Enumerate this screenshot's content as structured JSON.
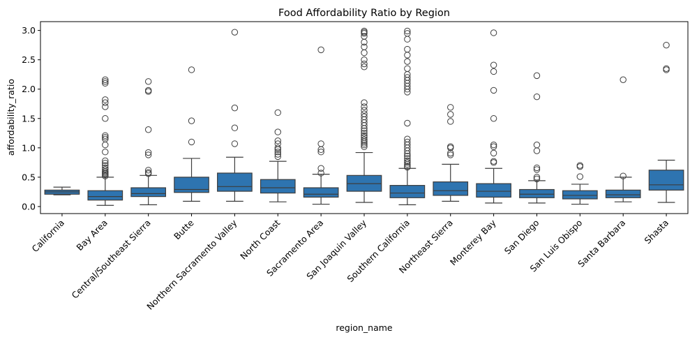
{
  "chart_data": {
    "type": "box",
    "title": "Food Affordability Ratio by Region",
    "xlabel": "region_name",
    "ylabel": "affordability_ratio",
    "ylim": [
      -0.12,
      3.15
    ],
    "yticks": [
      0.0,
      0.5,
      1.0,
      1.5,
      2.0,
      2.5,
      3.0
    ],
    "ytick_labels": [
      "0.0",
      "0.5",
      "1.0",
      "1.5",
      "2.0",
      "2.5",
      "3.0"
    ],
    "grid": false,
    "box_color": "#2e74b0",
    "categories": [
      "California",
      "Bay Area",
      "Central/Southeast Sierra",
      "Butte",
      "Northern Sacramento Valley",
      "North Coast",
      "Sacramento Area",
      "San Joaquin Valley",
      "Southern California",
      "Northeast Sierra",
      "Monterey Bay",
      "San Diego",
      "San Luis Obispo",
      "Santa Barbara",
      "Shasta"
    ],
    "boxes": [
      {
        "whislo": 0.2,
        "q1": 0.21,
        "med": 0.25,
        "q3": 0.28,
        "whishi": 0.33,
        "fliers": []
      },
      {
        "whislo": 0.02,
        "q1": 0.11,
        "med": 0.17,
        "q3": 0.27,
        "whishi": 0.5,
        "fliers": [
          0.52,
          0.54,
          0.56,
          0.58,
          0.6,
          0.63,
          0.66,
          0.7,
          0.74,
          0.78,
          0.93,
          1.05,
          1.15,
          1.18,
          1.21,
          1.5,
          1.7,
          1.77,
          1.82,
          2.1,
          2.13,
          2.16
        ]
      },
      {
        "whislo": 0.03,
        "q1": 0.17,
        "med": 0.22,
        "q3": 0.32,
        "whishi": 0.53,
        "fliers": [
          0.56,
          0.58,
          0.62,
          0.88,
          0.92,
          1.31,
          1.96,
          1.98,
          2.13
        ]
      },
      {
        "whislo": 0.09,
        "q1": 0.24,
        "med": 0.29,
        "q3": 0.5,
        "whishi": 0.82,
        "fliers": [
          1.1,
          1.46,
          2.33
        ]
      },
      {
        "whislo": 0.09,
        "q1": 0.26,
        "med": 0.34,
        "q3": 0.57,
        "whishi": 0.84,
        "fliers": [
          1.07,
          1.34,
          1.68,
          2.97
        ]
      },
      {
        "whislo": 0.08,
        "q1": 0.23,
        "med": 0.32,
        "q3": 0.46,
        "whishi": 0.77,
        "fliers": [
          0.85,
          0.89,
          0.93,
          0.97,
          1.0,
          1.07,
          1.12,
          1.27,
          1.6
        ]
      },
      {
        "whislo": 0.04,
        "q1": 0.16,
        "med": 0.21,
        "q3": 0.32,
        "whishi": 0.55,
        "fliers": [
          0.57,
          0.65,
          0.93,
          0.97,
          1.07,
          2.67
        ]
      },
      {
        "whislo": 0.07,
        "q1": 0.26,
        "med": 0.39,
        "q3": 0.53,
        "whishi": 0.92,
        "fliers": [
          1.02,
          1.05,
          1.08,
          1.11,
          1.14,
          1.18,
          1.21,
          1.25,
          1.29,
          1.33,
          1.38,
          1.43,
          1.48,
          1.53,
          1.58,
          1.64,
          1.7,
          1.77,
          2.38,
          2.43,
          2.5,
          2.62,
          2.72,
          2.8,
          2.9,
          2.95,
          2.97,
          2.99
        ]
      },
      {
        "whislo": 0.03,
        "q1": 0.15,
        "med": 0.23,
        "q3": 0.36,
        "whishi": 0.65,
        "fliers": [
          0.67,
          0.69,
          0.72,
          0.75,
          0.78,
          0.82,
          0.86,
          0.9,
          0.95,
          1.0,
          1.05,
          1.1,
          1.15,
          1.42,
          1.95,
          2.0,
          2.05,
          2.1,
          2.15,
          2.2,
          2.25,
          2.35,
          2.47,
          2.58,
          2.68,
          2.85,
          2.95,
          2.99
        ]
      },
      {
        "whislo": 0.09,
        "q1": 0.19,
        "med": 0.27,
        "q3": 0.42,
        "whishi": 0.72,
        "fliers": [
          0.88,
          0.91,
          1.0,
          1.02,
          1.45,
          1.57,
          1.69
        ]
      },
      {
        "whislo": 0.06,
        "q1": 0.16,
        "med": 0.26,
        "q3": 0.39,
        "whishi": 0.65,
        "fliers": [
          0.75,
          0.77,
          0.91,
          1.02,
          1.05,
          1.5,
          1.98,
          2.3,
          2.41,
          2.96
        ]
      },
      {
        "whislo": 0.06,
        "q1": 0.15,
        "med": 0.21,
        "q3": 0.29,
        "whishi": 0.44,
        "fliers": [
          0.47,
          0.5,
          0.63,
          0.66,
          0.95,
          1.05,
          1.87,
          2.23
        ]
      },
      {
        "whislo": 0.04,
        "q1": 0.13,
        "med": 0.19,
        "q3": 0.27,
        "whishi": 0.38,
        "fliers": [
          0.51,
          0.68,
          0.7
        ]
      },
      {
        "whislo": 0.08,
        "q1": 0.15,
        "med": 0.2,
        "q3": 0.28,
        "whishi": 0.5,
        "fliers": [
          0.52,
          2.16
        ]
      },
      {
        "whislo": 0.07,
        "q1": 0.28,
        "med": 0.37,
        "q3": 0.62,
        "whishi": 0.79,
        "fliers": [
          2.33,
          2.35,
          2.75
        ]
      }
    ]
  }
}
